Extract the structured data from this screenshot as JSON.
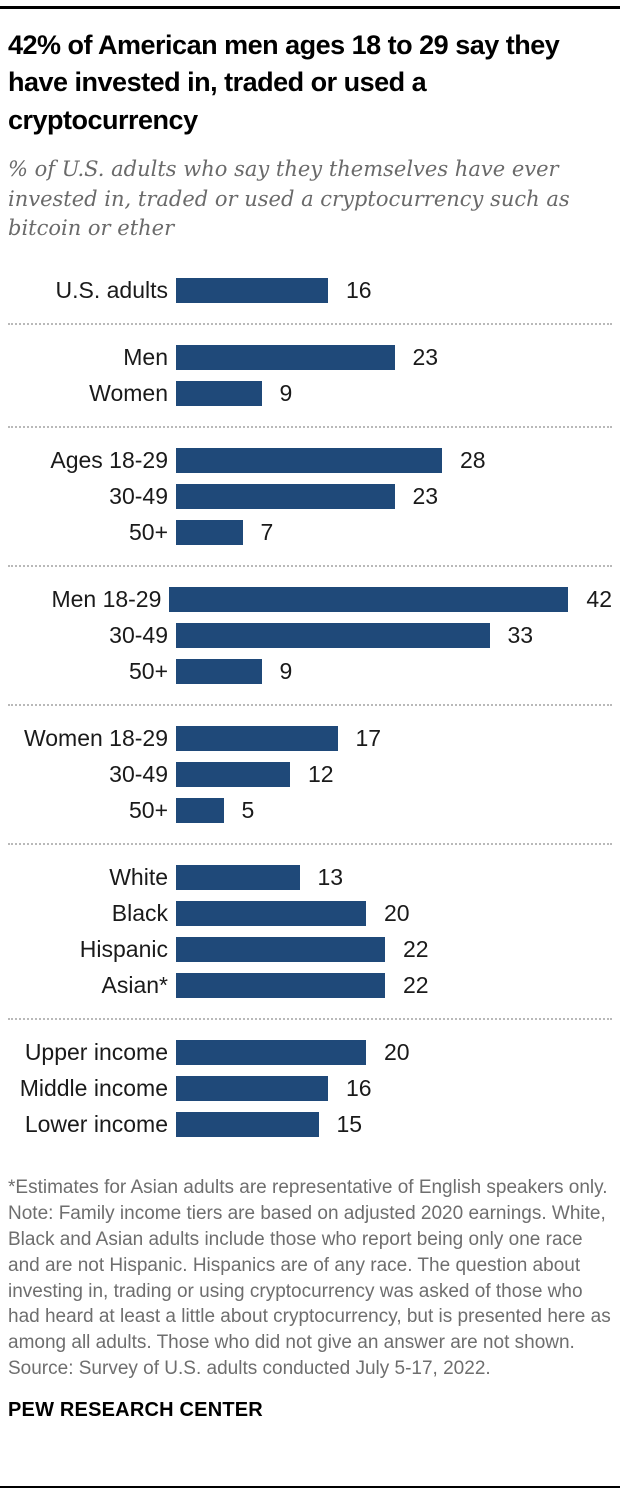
{
  "header": {
    "title": "42% of American men ages 18 to 29 say they have invested in, traded or used a cryptocurrency",
    "subtitle": "% of U.S. adults who say they themselves have ever invested in, traded or used a cryptocurrency such as bitcoin or ether"
  },
  "chart_data": {
    "type": "bar",
    "orientation": "horizontal",
    "unit": "percent",
    "bar_color": "#1F4979",
    "xlim": [
      0,
      42
    ],
    "value_labels_shown": true,
    "axis_shown": false,
    "group_separator": "dotted-line",
    "groups": [
      {
        "name": "total",
        "rows": [
          {
            "label": "U.S. adults",
            "value": 16
          }
        ]
      },
      {
        "name": "gender",
        "rows": [
          {
            "label": "Men",
            "value": 23
          },
          {
            "label": "Women",
            "value": 9
          }
        ]
      },
      {
        "name": "age",
        "rows": [
          {
            "label": "Ages 18-29",
            "value": 28
          },
          {
            "label": "30-49",
            "value": 23
          },
          {
            "label": "50+",
            "value": 7
          }
        ]
      },
      {
        "name": "men-by-age",
        "rows": [
          {
            "label": "Men 18-29",
            "value": 42
          },
          {
            "label": "30-49",
            "value": 33
          },
          {
            "label": "50+",
            "value": 9
          }
        ]
      },
      {
        "name": "women-by-age",
        "rows": [
          {
            "label": "Women 18-29",
            "value": 17
          },
          {
            "label": "30-49",
            "value": 12
          },
          {
            "label": "50+",
            "value": 5
          }
        ]
      },
      {
        "name": "race-ethnicity",
        "rows": [
          {
            "label": "White",
            "value": 13
          },
          {
            "label": "Black",
            "value": 20
          },
          {
            "label": "Hispanic",
            "value": 22
          },
          {
            "label": "Asian*",
            "value": 22
          }
        ]
      },
      {
        "name": "income",
        "rows": [
          {
            "label": "Upper income",
            "value": 20
          },
          {
            "label": "Middle income",
            "value": 16
          },
          {
            "label": "Lower income",
            "value": 15
          }
        ]
      }
    ]
  },
  "footer": {
    "asterisk_note": "*Estimates for Asian adults are representative of English speakers only.",
    "note": "Note: Family income tiers are based on adjusted 2020 earnings. White, Black and Asian adults include those who report being only one race and are not Hispanic. Hispanics are of any race. The question about investing in, trading or using cryptocurrency was asked of those who had heard at least a little about cryptocurrency, but is presented here as among all adults. Those who did not give an answer are not shown.",
    "source": "Source: Survey of U.S. adults conducted July 5-17, 2022.",
    "brand": "PEW RESEARCH CENTER"
  }
}
